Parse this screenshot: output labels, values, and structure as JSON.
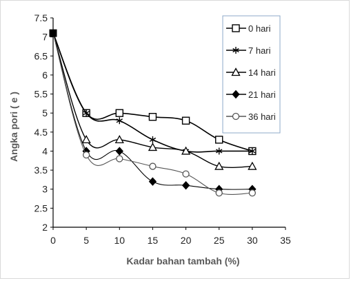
{
  "chart_data": {
    "type": "line",
    "xlabel": "Kadar bahan tambah (%)",
    "ylabel": "Angka pori ( e )",
    "xlim": [
      0,
      35
    ],
    "ylim": [
      2,
      7.5
    ],
    "xticks": [
      "0",
      "5",
      "10",
      "15",
      "20",
      "25",
      "30",
      "35"
    ],
    "yticks": [
      "2",
      "2.5",
      "3",
      "3.5",
      "4",
      "4.5",
      "5",
      "5.5",
      "6",
      "6.5",
      "7",
      "7.5"
    ],
    "grid": false,
    "legend_position": "top-right",
    "x": [
      0,
      5,
      10,
      15,
      20,
      25,
      30
    ],
    "series": [
      {
        "name": "0 hari",
        "marker": "square-open",
        "color": "#000000",
        "values": [
          7.1,
          5.0,
          5.0,
          4.9,
          4.8,
          4.3,
          4.0
        ]
      },
      {
        "name": "7 hari",
        "marker": "star",
        "color": "#000000",
        "values": [
          7.1,
          5.0,
          4.8,
          4.3,
          4.0,
          4.0,
          4.0
        ]
      },
      {
        "name": "14 hari",
        "marker": "triangle-open",
        "color": "#000000",
        "values": [
          7.1,
          4.3,
          4.3,
          4.1,
          4.0,
          3.6,
          3.6
        ]
      },
      {
        "name": "21 hari",
        "marker": "diamond-filled",
        "color": "#000000",
        "values": [
          7.1,
          4.0,
          4.0,
          3.2,
          3.1,
          3.0,
          3.0
        ]
      },
      {
        "name": "36 hari",
        "marker": "circle-open",
        "color": "#555555",
        "values": [
          7.1,
          3.9,
          3.8,
          3.6,
          3.4,
          2.9,
          2.9
        ]
      }
    ]
  }
}
